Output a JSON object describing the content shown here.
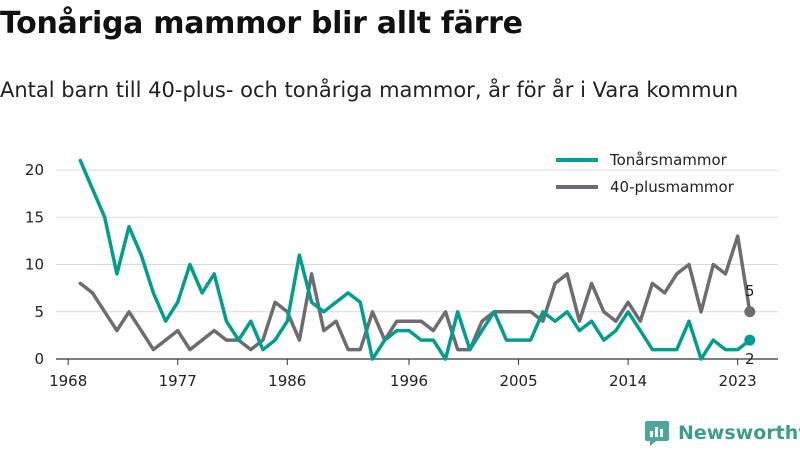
{
  "header": {
    "title": "Tonåriga mammor blir allt färre",
    "subtitle": "Antal barn till 40-plus- och tonåriga mammor, år för år i Vara kommun"
  },
  "brand": {
    "name": "Newsworthy"
  },
  "chart_data": {
    "type": "line",
    "title": "Tonåriga mammor blir allt färre",
    "subtitle": "Antal barn till 40-plus- och tonåriga mammor, år för år i Vara kommun",
    "xlabel": "",
    "ylabel": "",
    "x": [
      1969,
      1970,
      1971,
      1972,
      1973,
      1974,
      1975,
      1976,
      1977,
      1978,
      1979,
      1980,
      1981,
      1982,
      1983,
      1984,
      1985,
      1986,
      1987,
      1988,
      1989,
      1990,
      1991,
      1992,
      1993,
      1994,
      1995,
      1996,
      1997,
      1998,
      1999,
      2000,
      2001,
      2002,
      2003,
      2004,
      2005,
      2006,
      2007,
      2008,
      2009,
      2010,
      2011,
      2012,
      2013,
      2014,
      2015,
      2016,
      2017,
      2018,
      2019,
      2020,
      2021,
      2022,
      2023,
      2024
    ],
    "xticks": [
      "1968",
      "1977",
      "1986",
      "1996",
      "2005",
      "2014",
      "2023"
    ],
    "xtick_values": [
      1968,
      1977,
      1986,
      1996,
      2005,
      2014,
      2023
    ],
    "yticks": [
      "0",
      "5",
      "10",
      "15",
      "20"
    ],
    "ytick_values": [
      0,
      5,
      10,
      15,
      20
    ],
    "xlim": [
      1967,
      2025
    ],
    "ylim": [
      0,
      20
    ],
    "grid": "horizontal",
    "legend_position": "top-right",
    "series": [
      {
        "name": "Tonårsmammor",
        "color": "#009e8f",
        "end_label": "2",
        "values": [
          21,
          18,
          15,
          9,
          14,
          11,
          7,
          4,
          6,
          10,
          7,
          9,
          4,
          2,
          4,
          1,
          2,
          4,
          11,
          6,
          5,
          6,
          7,
          6,
          0,
          2,
          3,
          3,
          2,
          2,
          0,
          5,
          1,
          3,
          5,
          2,
          2,
          2,
          5,
          4,
          5,
          3,
          4,
          2,
          3,
          5,
          3,
          1,
          1,
          1,
          4,
          0,
          2,
          1,
          1,
          2
        ]
      },
      {
        "name": "40-plusmammor",
        "color": "#6d6c72",
        "end_label": "5",
        "values": [
          8,
          7,
          5,
          3,
          5,
          3,
          1,
          2,
          3,
          1,
          2,
          3,
          2,
          2,
          1,
          2,
          6,
          5,
          2,
          9,
          3,
          4,
          1,
          1,
          5,
          2,
          4,
          4,
          4,
          3,
          5,
          1,
          1,
          4,
          5,
          5,
          5,
          5,
          4,
          8,
          9,
          4,
          8,
          5,
          4,
          6,
          4,
          8,
          7,
          9,
          10,
          5,
          10,
          9,
          13,
          5
        ]
      }
    ]
  }
}
